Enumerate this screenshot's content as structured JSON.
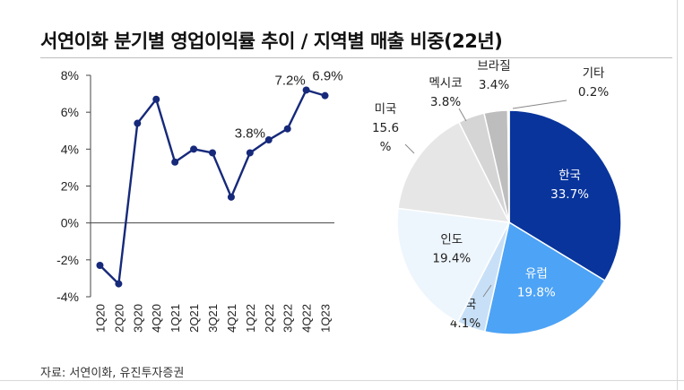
{
  "title": "서연이화 분기별 영업이익률 추이 / 지역별 매출 비중(22년)",
  "source": "자료: 서연이화, 유진투자증권",
  "chart_data": [
    {
      "type": "line",
      "title": "",
      "xlabel": "",
      "ylabel": "",
      "categories": [
        "1Q20",
        "2Q20",
        "3Q20",
        "4Q20",
        "1Q21",
        "2Q21",
        "3Q21",
        "4Q21",
        "1Q22",
        "2Q22",
        "3Q22",
        "4Q22",
        "1Q23"
      ],
      "values": [
        -2.3,
        -3.3,
        5.4,
        6.7,
        3.3,
        4.0,
        3.8,
        1.4,
        3.8,
        4.5,
        5.1,
        7.2,
        6.9
      ],
      "yticks": [
        "8%",
        "6%",
        "4%",
        "2%",
        "0%",
        "-2%",
        "-4%"
      ],
      "ylim": [
        -4,
        8
      ],
      "data_labels": [
        {
          "category": "1Q22",
          "text": "3.8%"
        },
        {
          "category": "4Q22",
          "text": "7.2%"
        },
        {
          "category": "1Q23",
          "text": "6.9%"
        }
      ],
      "grid": false,
      "colors": {
        "line": "#16297a",
        "marker": "#16297a"
      }
    },
    {
      "type": "pie",
      "title": "",
      "slices": [
        {
          "name": "한국",
          "value": 33.7,
          "label": "33.7%",
          "color": "#08349c",
          "text_color": "#ffffff",
          "label_inside": true
        },
        {
          "name": "유럽",
          "value": 19.8,
          "label": "19.8%",
          "color": "#4da3f5",
          "text_color": "#ffffff",
          "label_inside": true
        },
        {
          "name": "중국",
          "value": 4.1,
          "label": "4.1%",
          "color": "#c8e0f7",
          "text_color": "#222222",
          "label_inside": false
        },
        {
          "name": "인도",
          "value": 19.4,
          "label": "19.4%",
          "color": "#eef6fd",
          "text_color": "#222222",
          "label_inside": true
        },
        {
          "name": "미국",
          "value": 15.6,
          "label": "15.6\n%",
          "color": "#e6e6e6",
          "text_color": "#222222",
          "label_inside": false
        },
        {
          "name": "멕시코",
          "value": 3.8,
          "label": "3.8%",
          "color": "#d5d5d5",
          "text_color": "#222222",
          "label_inside": false
        },
        {
          "name": "브라질",
          "value": 3.4,
          "label": "3.4%",
          "color": "#bdbdbd",
          "text_color": "#222222",
          "label_inside": false
        },
        {
          "name": "기타",
          "value": 0.2,
          "label": "0.2%",
          "color": "#9a9a9a",
          "text_color": "#222222",
          "label_inside": false
        }
      ]
    }
  ]
}
